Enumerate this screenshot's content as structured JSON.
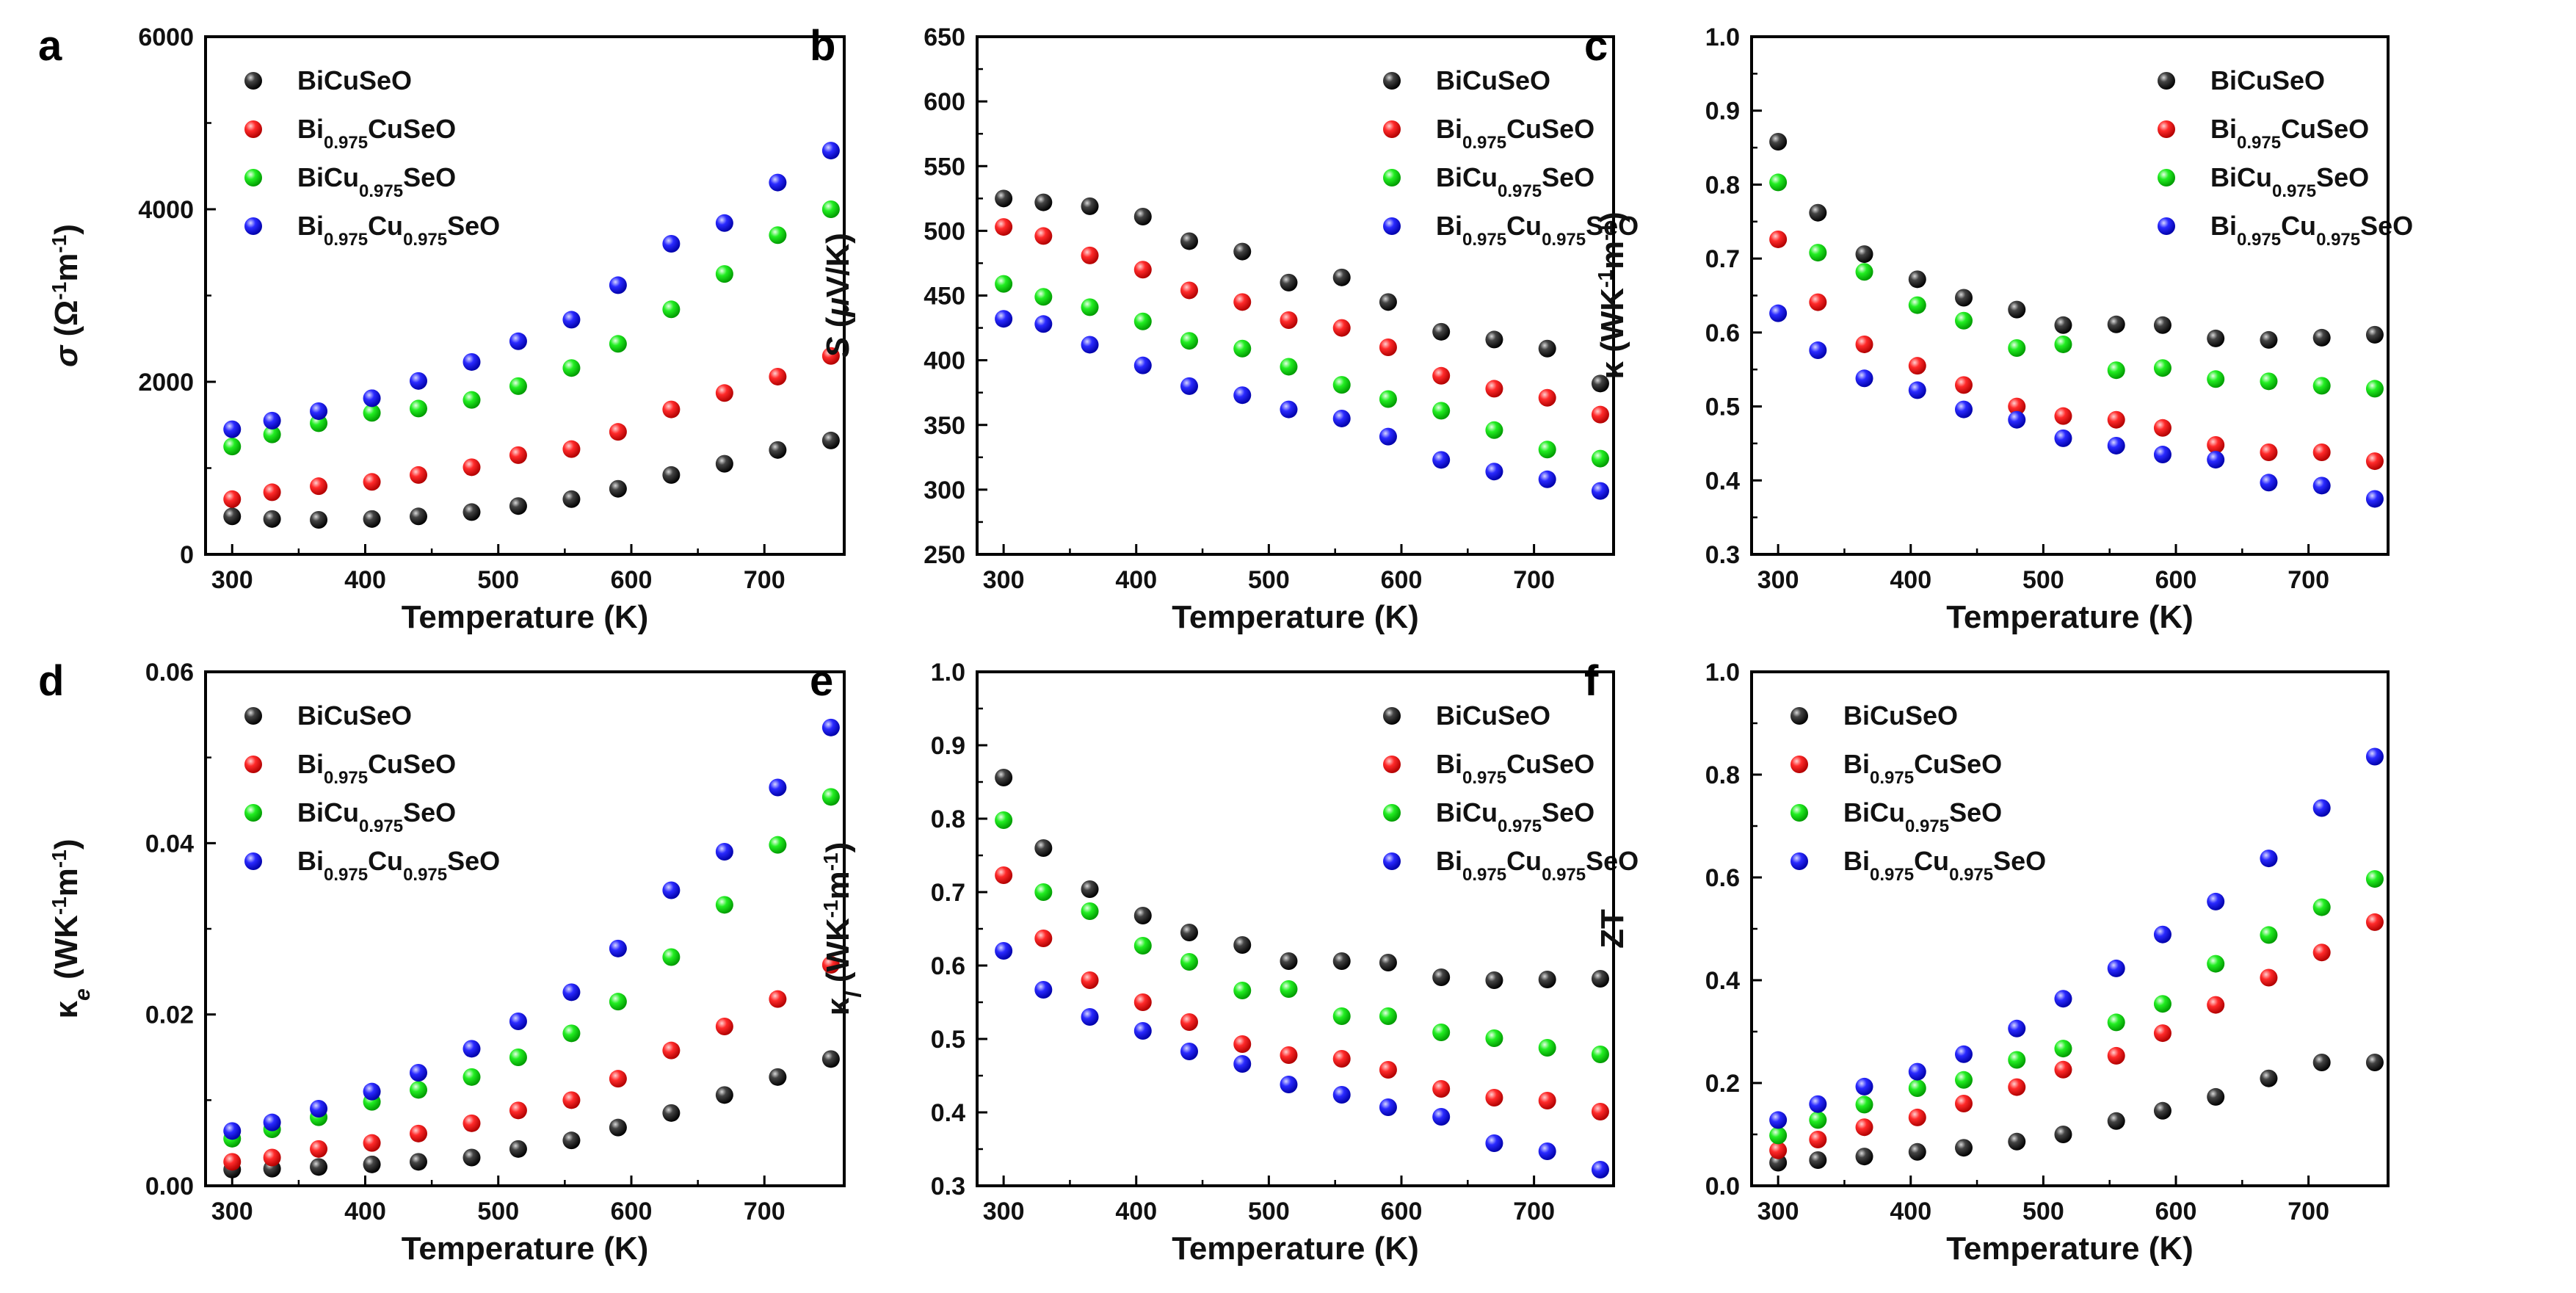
{
  "legend_series": [
    {
      "name": "BiCuSeO",
      "sub": "",
      "color": "#000000",
      "parts": [
        {
          "t": "BiCuSeO",
          "s": false
        }
      ]
    },
    {
      "name": "Bi0.975CuSeO",
      "sub": "0.975",
      "color": "#ff0000",
      "parts": [
        {
          "t": "Bi",
          "s": false
        },
        {
          "t": "0.975",
          "s": true
        },
        {
          "t": "CuSeO",
          "s": false
        }
      ]
    },
    {
      "name": "BiCu0.975SeO",
      "sub": "0.975",
      "color": "#00ee00",
      "parts": [
        {
          "t": "BiCu",
          "s": false
        },
        {
          "t": "0.975",
          "s": true
        },
        {
          "t": "SeO",
          "s": false
        }
      ]
    },
    {
      "name": "Bi0.975Cu0.975SeO",
      "sub": "0.975",
      "color": "#0000ff",
      "parts": [
        {
          "t": "Bi",
          "s": false
        },
        {
          "t": "0.975",
          "s": true
        },
        {
          "t": "Cu",
          "s": false
        },
        {
          "t": "0.975",
          "s": true
        },
        {
          "t": "SeO",
          "s": false
        }
      ]
    }
  ],
  "chart_data": [
    {
      "panel": "a",
      "type": "scatter",
      "xlabel": "Temperature (K)",
      "ylabel": "σ (Ω⁻¹m⁻¹)",
      "ylabel_parts": [
        {
          "t": "σ",
          "st": "italic"
        },
        {
          "t": " (Ω",
          "st": ""
        },
        {
          "t": "-1",
          "st": "sup"
        },
        {
          "t": "m",
          "st": ""
        },
        {
          "t": "-1",
          "st": "sup"
        },
        {
          "t": ")",
          "st": ""
        }
      ],
      "xlim": [
        280,
        760
      ],
      "ylim": [
        0,
        6000
      ],
      "xticks": [
        300,
        400,
        500,
        600,
        700
      ],
      "yticks": [
        0,
        2000,
        4000,
        6000
      ],
      "legend": "top-left",
      "x": [
        300,
        330,
        365,
        405,
        440,
        480,
        515,
        555,
        590,
        630,
        670,
        710,
        750
      ],
      "series": [
        {
          "name": "BiCuSeO",
          "values": [
            440,
            410,
            400,
            410,
            440,
            490,
            560,
            640,
            760,
            920,
            1050,
            1210,
            1320
          ]
        },
        {
          "name": "Bi0.975CuSeO",
          "values": [
            640,
            720,
            790,
            840,
            920,
            1010,
            1150,
            1220,
            1420,
            1680,
            1870,
            2060,
            2300
          ]
        },
        {
          "name": "BiCu0.975SeO",
          "values": [
            1250,
            1390,
            1520,
            1640,
            1690,
            1790,
            1950,
            2160,
            2440,
            2840,
            3250,
            3700,
            4000
          ]
        },
        {
          "name": "Bi0.975Cu0.975SeO",
          "values": [
            1450,
            1550,
            1660,
            1810,
            2010,
            2230,
            2470,
            2720,
            3120,
            3600,
            3840,
            4310,
            4680
          ]
        }
      ]
    },
    {
      "panel": "b",
      "type": "scatter",
      "xlabel": "Temperature (K)",
      "ylabel": "S (μV/K)",
      "ylabel_parts": [
        {
          "t": "S",
          "st": "italic"
        },
        {
          "t": " (",
          "st": ""
        },
        {
          "t": "μ",
          "st": "italic"
        },
        {
          "t": "V/K)",
          "st": ""
        }
      ],
      "xlim": [
        280,
        760
      ],
      "ylim": [
        250,
        650
      ],
      "xticks": [
        300,
        400,
        500,
        600,
        700
      ],
      "yticks": [
        250,
        300,
        350,
        400,
        450,
        500,
        550,
        600,
        650
      ],
      "legend": "top-right",
      "x": [
        300,
        330,
        365,
        405,
        440,
        480,
        515,
        555,
        590,
        630,
        670,
        710,
        750
      ],
      "series": [
        {
          "name": "BiCuSeO",
          "values": [
            525,
            522,
            519,
            511,
            492,
            484,
            460,
            464,
            445,
            422,
            416,
            409,
            382
          ]
        },
        {
          "name": "Bi0.975CuSeO",
          "values": [
            503,
            496,
            481,
            470,
            454,
            445,
            431,
            425,
            410,
            388,
            378,
            371,
            358
          ]
        },
        {
          "name": "BiCu0.975SeO",
          "values": [
            459,
            449,
            441,
            430,
            415,
            409,
            395,
            381,
            370,
            361,
            346,
            331,
            324
          ]
        },
        {
          "name": "Bi0.975Cu0.975SeO",
          "values": [
            432,
            428,
            412,
            396,
            380,
            373,
            362,
            355,
            341,
            323,
            314,
            308,
            299
          ]
        }
      ]
    },
    {
      "panel": "c",
      "type": "scatter",
      "xlabel": "Temperature (K)",
      "ylabel": "κ (WK⁻¹m⁻¹)",
      "ylabel_parts": [
        {
          "t": "κ",
          "st": ""
        },
        {
          "t": " (WK",
          "st": ""
        },
        {
          "t": "-1",
          "st": "sup"
        },
        {
          "t": "m",
          "st": ""
        },
        {
          "t": "-1",
          "st": "sup"
        },
        {
          "t": ")",
          "st": ""
        }
      ],
      "xlim": [
        280,
        760
      ],
      "ylim": [
        0.3,
        1.0
      ],
      "xticks": [
        300,
        400,
        500,
        600,
        700
      ],
      "yticks": [
        0.3,
        0.4,
        0.5,
        0.6,
        0.7,
        0.8,
        0.9,
        1.0
      ],
      "legend": "top-right",
      "x": [
        300,
        330,
        365,
        405,
        440,
        480,
        515,
        555,
        590,
        630,
        670,
        710,
        750
      ],
      "series": [
        {
          "name": "BiCuSeO",
          "values": [
            0.858,
            0.762,
            0.706,
            0.672,
            0.647,
            0.631,
            0.61,
            0.611,
            0.61,
            0.592,
            0.59,
            0.593,
            0.597
          ]
        },
        {
          "name": "Bi0.975CuSeO",
          "values": [
            0.726,
            0.641,
            0.584,
            0.555,
            0.529,
            0.5,
            0.487,
            0.482,
            0.471,
            0.448,
            0.438,
            0.438,
            0.426
          ]
        },
        {
          "name": "BiCu0.975SeO",
          "values": [
            0.803,
            0.708,
            0.682,
            0.637,
            0.616,
            0.579,
            0.584,
            0.549,
            0.552,
            0.537,
            0.534,
            0.528,
            0.524
          ]
        },
        {
          "name": "Bi0.975Cu0.975SeO",
          "values": [
            0.626,
            0.576,
            0.538,
            0.522,
            0.496,
            0.482,
            0.457,
            0.447,
            0.435,
            0.428,
            0.397,
            0.393,
            0.375
          ]
        }
      ]
    },
    {
      "panel": "d",
      "type": "scatter",
      "xlabel": "Temperature (K)",
      "ylabel": "κe (WK⁻¹m⁻¹)",
      "ylabel_parts": [
        {
          "t": "κ",
          "st": ""
        },
        {
          "t": "e",
          "st": "subi"
        },
        {
          "t": " (WK",
          "st": ""
        },
        {
          "t": "-1",
          "st": "sup"
        },
        {
          "t": "m",
          "st": ""
        },
        {
          "t": "-1",
          "st": "sup"
        },
        {
          "t": ")",
          "st": ""
        }
      ],
      "xlim": [
        280,
        760
      ],
      "ylim": [
        0.0,
        0.06
      ],
      "xticks": [
        300,
        400,
        500,
        600,
        700
      ],
      "yticks": [
        0.0,
        0.02,
        0.04,
        0.06
      ],
      "ytick_decimals": 2,
      "legend": "top-left",
      "x": [
        300,
        330,
        365,
        405,
        440,
        480,
        515,
        555,
        590,
        630,
        670,
        710,
        750
      ],
      "series": [
        {
          "name": "BiCuSeO",
          "values": [
            0.0019,
            0.002,
            0.0022,
            0.0025,
            0.0028,
            0.0033,
            0.0043,
            0.0053,
            0.0068,
            0.0085,
            0.0106,
            0.0127,
            0.0148
          ]
        },
        {
          "name": "Bi0.975CuSeO",
          "values": [
            0.0028,
            0.0033,
            0.0043,
            0.005,
            0.0061,
            0.0073,
            0.0088,
            0.01,
            0.0125,
            0.0158,
            0.0186,
            0.0218,
            0.0258
          ]
        },
        {
          "name": "BiCu0.975SeO",
          "values": [
            0.0055,
            0.0066,
            0.008,
            0.0098,
            0.0112,
            0.0127,
            0.015,
            0.0178,
            0.0215,
            0.0267,
            0.0328,
            0.0398,
            0.0454
          ]
        },
        {
          "name": "Bi0.975Cu0.975SeO",
          "values": [
            0.0064,
            0.0074,
            0.009,
            0.011,
            0.0132,
            0.016,
            0.0192,
            0.0226,
            0.0277,
            0.0345,
            0.039,
            0.0465,
            0.0535
          ]
        }
      ]
    },
    {
      "panel": "e",
      "type": "scatter",
      "xlabel": "Temperature (K)",
      "ylabel": "κl (WK⁻¹m⁻¹)",
      "ylabel_parts": [
        {
          "t": "κ",
          "st": ""
        },
        {
          "t": "l",
          "st": "subi"
        },
        {
          "t": " (WK",
          "st": ""
        },
        {
          "t": "-1",
          "st": "sup"
        },
        {
          "t": "m",
          "st": ""
        },
        {
          "t": "-1",
          "st": "sup"
        },
        {
          "t": ")",
          "st": ""
        }
      ],
      "xlim": [
        280,
        760
      ],
      "ylim": [
        0.3,
        1.0
      ],
      "xticks": [
        300,
        400,
        500,
        600,
        700
      ],
      "yticks": [
        0.3,
        0.4,
        0.5,
        0.6,
        0.7,
        0.8,
        0.9,
        1.0
      ],
      "legend": "top-right",
      "x": [
        300,
        330,
        365,
        405,
        440,
        480,
        515,
        555,
        590,
        630,
        670,
        710,
        750
      ],
      "series": [
        {
          "name": "BiCuSeO",
          "values": [
            0.856,
            0.76,
            0.704,
            0.668,
            0.645,
            0.628,
            0.606,
            0.606,
            0.604,
            0.584,
            0.58,
            0.581,
            0.582
          ]
        },
        {
          "name": "Bi0.975CuSeO",
          "values": [
            0.723,
            0.637,
            0.58,
            0.55,
            0.523,
            0.493,
            0.478,
            0.473,
            0.458,
            0.432,
            0.42,
            0.416,
            0.401
          ]
        },
        {
          "name": "BiCu0.975SeO",
          "values": [
            0.798,
            0.7,
            0.674,
            0.627,
            0.605,
            0.566,
            0.568,
            0.531,
            0.531,
            0.509,
            0.501,
            0.488,
            0.479
          ]
        },
        {
          "name": "Bi0.975Cu0.975SeO",
          "values": [
            0.62,
            0.567,
            0.53,
            0.511,
            0.483,
            0.466,
            0.438,
            0.424,
            0.407,
            0.394,
            0.358,
            0.347,
            0.322
          ]
        }
      ]
    },
    {
      "panel": "f",
      "type": "scatter",
      "xlabel": "Temperature (K)",
      "ylabel": "ZT",
      "ylabel_parts": [
        {
          "t": "ZT",
          "st": ""
        }
      ],
      "xlim": [
        280,
        760
      ],
      "ylim": [
        0.0,
        1.0
      ],
      "xticks": [
        300,
        400,
        500,
        600,
        700
      ],
      "yticks": [
        0.0,
        0.2,
        0.4,
        0.6,
        0.8,
        1.0
      ],
      "legend": "top-left",
      "x": [
        300,
        330,
        365,
        405,
        440,
        480,
        515,
        555,
        590,
        630,
        670,
        710,
        750
      ],
      "series": [
        {
          "name": "BiCuSeO",
          "values": [
            0.045,
            0.05,
            0.057,
            0.066,
            0.074,
            0.086,
            0.1,
            0.126,
            0.146,
            0.173,
            0.209,
            0.24,
            0.24
          ]
        },
        {
          "name": "Bi0.975CuSeO",
          "values": [
            0.069,
            0.09,
            0.114,
            0.133,
            0.16,
            0.192,
            0.226,
            0.253,
            0.297,
            0.352,
            0.405,
            0.454,
            0.513
          ]
        },
        {
          "name": "BiCu0.975SeO",
          "values": [
            0.098,
            0.128,
            0.158,
            0.19,
            0.206,
            0.245,
            0.267,
            0.318,
            0.354,
            0.432,
            0.488,
            0.542,
            0.597
          ]
        },
        {
          "name": "Bi0.975Cu0.975SeO",
          "values": [
            0.128,
            0.159,
            0.193,
            0.222,
            0.256,
            0.306,
            0.364,
            0.423,
            0.489,
            0.553,
            0.637,
            0.735,
            0.835
          ]
        }
      ]
    }
  ]
}
